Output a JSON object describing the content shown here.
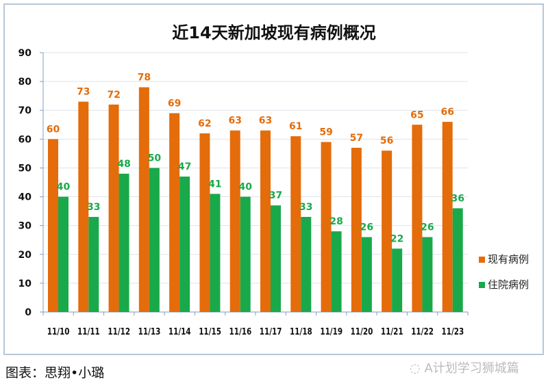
{
  "chart_data": {
    "type": "bar",
    "title": "近14天新加坡现有病例概况",
    "categories": [
      "11/10",
      "11/11",
      "11/12",
      "11/13",
      "11/14",
      "11/15",
      "11/16",
      "11/17",
      "11/18",
      "11/19",
      "11/20",
      "11/21",
      "11/22",
      "11/23"
    ],
    "series": [
      {
        "name": "现有病例",
        "color": "#E46C0A",
        "values": [
          60,
          73,
          72,
          78,
          69,
          62,
          63,
          63,
          61,
          59,
          57,
          56,
          65,
          66
        ]
      },
      {
        "name": "住院病例",
        "color": "#19A94A",
        "values": [
          40,
          33,
          48,
          50,
          47,
          41,
          40,
          37,
          33,
          28,
          26,
          22,
          26,
          36
        ]
      }
    ],
    "ylim": [
      0,
      90
    ],
    "yticks": [
      0,
      10,
      20,
      30,
      40,
      50,
      60,
      70,
      80,
      90
    ],
    "grid": true,
    "legend": "right",
    "data_labels": true
  },
  "caption": "图表：思翔•小璐",
  "watermark": "A计划学习狮城篇"
}
